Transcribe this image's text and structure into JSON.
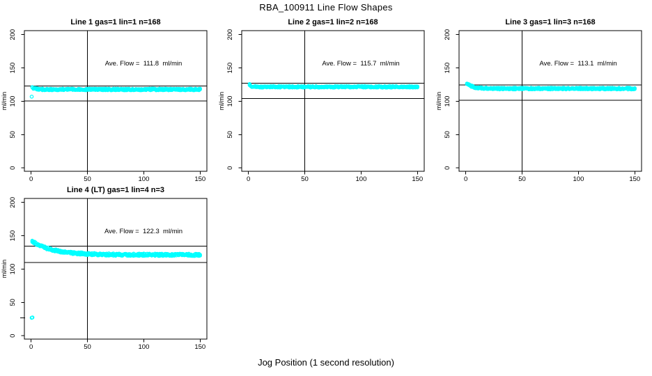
{
  "chart_data": {
    "type": "scatter",
    "title": "RBA_100911  Line Flow Shapes",
    "xlabel": "Jog Position (1 second resolution)",
    "ylabel": "ml/min",
    "xlim": [
      0,
      150
    ],
    "ylim": [
      0,
      200
    ],
    "x_ticks": [
      0,
      50,
      100,
      150
    ],
    "y_ticks": [
      0,
      50,
      100,
      150,
      200
    ],
    "marker": "open-circle",
    "marker_color": "#00FFFF",
    "axis_color": "#000000",
    "background_color": "#FFFFFF",
    "legend": "none",
    "grid": "off",
    "layout": "2 rows x 3 cols; plots 1-3 in row 1, plot 4 in row 2 col 1",
    "annotation_anchor": {
      "x": 100,
      "y": 155
    },
    "plots": [
      {
        "title": "Line 1 gas=1 lin=1 n=168",
        "ave_flow": 111.8,
        "annotation": "Ave. Flow =  111.8  ml/min",
        "hlines": [
          123.0,
          100.6
        ],
        "vline_x": 50,
        "series": {
          "x_start": 1,
          "x_end": 150,
          "x_step": 1,
          "start_y": 121,
          "settle_y": 117.8,
          "decay_tau": 2.5,
          "jitter": 1.4,
          "passes": 3,
          "outliers": [
            [
              0.5,
              107
            ]
          ]
        }
      },
      {
        "title": "Line 2 gas=1 lin=2 n=168",
        "ave_flow": 115.7,
        "annotation": "Ave. Flow =  115.7  ml/min",
        "hlines": [
          127.3,
          104.1
        ],
        "vline_x": 50,
        "series": {
          "x_start": 1,
          "x_end": 150,
          "x_step": 1,
          "start_y": 125,
          "settle_y": 121.7,
          "decay_tau": 1.5,
          "jitter": 1.3,
          "passes": 3,
          "outliers": []
        }
      },
      {
        "title": "Line 3 gas=1 lin=3 n=168",
        "ave_flow": 113.1,
        "annotation": "Ave. Flow =  113.1  ml/min",
        "hlines": [
          124.4,
          101.8
        ],
        "vline_x": 50,
        "series": {
          "x_start": 1,
          "x_end": 150,
          "x_step": 1,
          "start_y": 127,
          "settle_y": 119.1,
          "decay_tau": 5,
          "jitter": 1.4,
          "passes": 3,
          "outliers": []
        }
      },
      {
        "title": "Line 4 (LT) gas=1 lin=4 n=3",
        "ave_flow": 122.3,
        "annotation": "Ave. Flow =  122.3  ml/min",
        "hlines": [
          134.5,
          110.1
        ],
        "vline_x": 50,
        "axis_mark_y": 27,
        "series": {
          "x_start": 1,
          "x_end": 150,
          "x_step": 1,
          "start_y": 142,
          "settle_y": 121.5,
          "decay_tau": 18,
          "jitter": 1.9,
          "passes": 3,
          "outliers": [
            [
              0.5,
              27
            ],
            [
              1.2,
              27.5
            ]
          ]
        }
      }
    ]
  }
}
